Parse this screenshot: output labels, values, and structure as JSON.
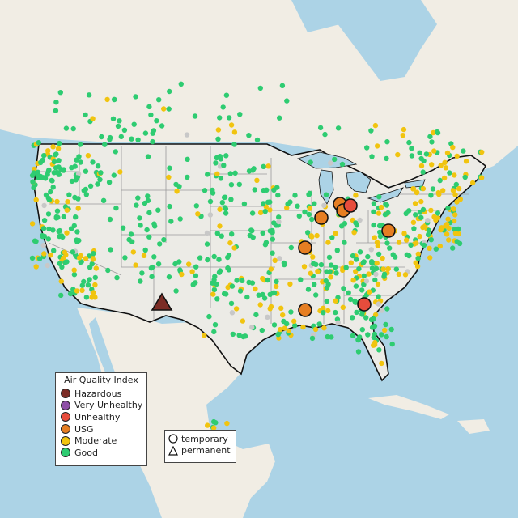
{
  "map": {
    "colors": {
      "water": "#acd3e6",
      "land": "#f1ede4",
      "usa_land": "#ecebe6",
      "borders": "#111111",
      "state_lines": "#9a9a9a"
    }
  },
  "legend_aqi": {
    "title": "Air Quality Index",
    "items": [
      {
        "label": "Hazardous",
        "color": "#7b2c25"
      },
      {
        "label": "Very Unhealthy",
        "color": "#8e4fa6"
      },
      {
        "label": "Unhealthy",
        "color": "#e74c3c"
      },
      {
        "label": "USG",
        "color": "#e67e22"
      },
      {
        "label": "Moderate",
        "color": "#f1c40f"
      },
      {
        "label": "Good",
        "color": "#2ecc71"
      }
    ]
  },
  "legend_type": {
    "items": [
      {
        "label": "temporary",
        "shape": "circle"
      },
      {
        "label": "permanent",
        "shape": "triangle"
      }
    ]
  }
}
